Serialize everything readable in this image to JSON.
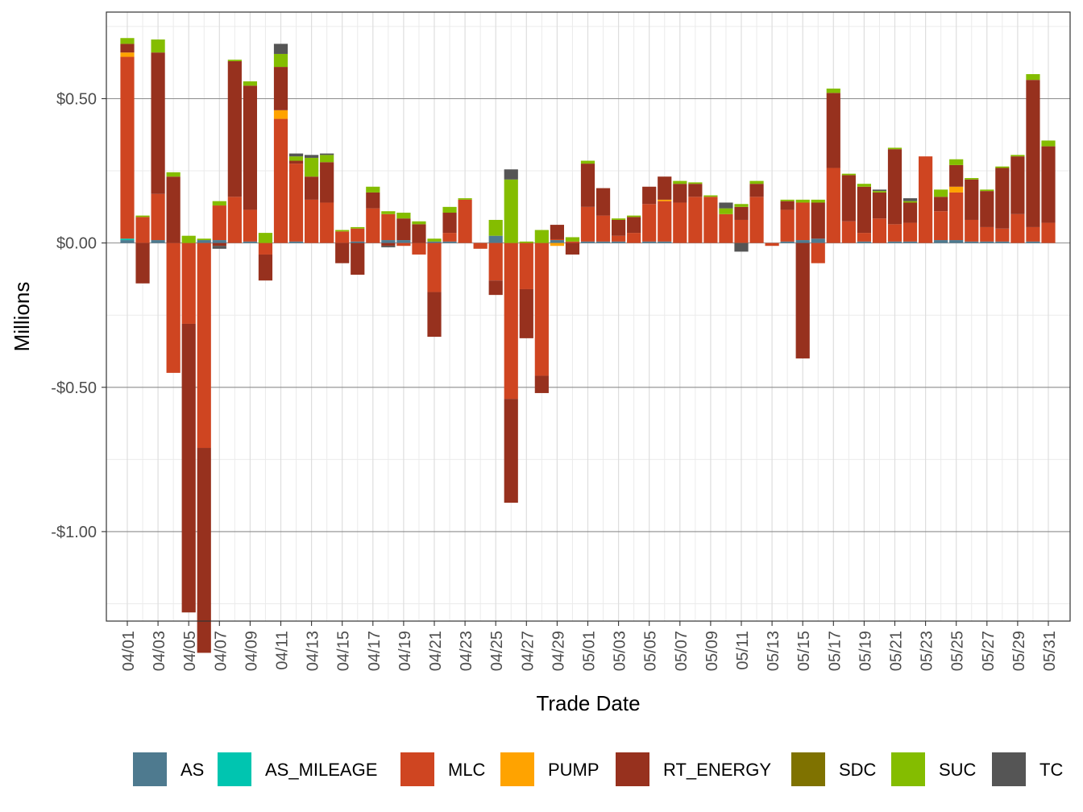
{
  "chart_data": {
    "type": "bar",
    "stacked": true,
    "xlabel": "Trade Date",
    "ylabel": "Millions",
    "ylim": [
      -1.31,
      0.8
    ],
    "yticks": [
      0.5,
      0.0,
      -0.5,
      -1.0
    ],
    "ytick_labels": [
      "$0.50",
      "$0.00",
      "-$0.50",
      "-$1.00"
    ],
    "grid": true,
    "legend_position": "bottom",
    "categories": [
      "04/01",
      "04/02",
      "04/03",
      "04/04",
      "04/05",
      "04/06",
      "04/07",
      "04/08",
      "04/09",
      "04/10",
      "04/11",
      "04/12",
      "04/13",
      "04/14",
      "04/15",
      "04/16",
      "04/17",
      "04/18",
      "04/19",
      "04/20",
      "04/21",
      "04/22",
      "04/23",
      "04/24",
      "04/25",
      "04/26",
      "04/27",
      "04/28",
      "04/29",
      "04/30",
      "05/01",
      "05/02",
      "05/03",
      "05/04",
      "05/05",
      "05/06",
      "05/07",
      "05/08",
      "05/09",
      "05/10",
      "05/11",
      "05/12",
      "05/13",
      "05/14",
      "05/15",
      "05/16",
      "05/17",
      "05/18",
      "05/19",
      "05/20",
      "05/21",
      "05/22",
      "05/23",
      "05/24",
      "05/25",
      "05/26",
      "05/27",
      "05/28",
      "05/29",
      "05/30",
      "05/31"
    ],
    "xtick_labels": [
      "04/01",
      "04/03",
      "04/05",
      "04/07",
      "04/09",
      "04/11",
      "04/13",
      "04/15",
      "04/17",
      "04/19",
      "04/21",
      "04/23",
      "04/25",
      "04/27",
      "04/29",
      "05/01",
      "05/03",
      "05/05",
      "05/07",
      "05/09",
      "05/11",
      "05/13",
      "05/15",
      "05/17",
      "05/19",
      "05/21",
      "05/23",
      "05/25",
      "05/27",
      "05/29",
      "05/31"
    ],
    "series": [
      {
        "name": "AS",
        "color": "#4e7a8f",
        "values": [
          0.01,
          0,
          0.01,
          0,
          0,
          0.01,
          0.01,
          0,
          0.005,
          0,
          0,
          0.005,
          0,
          0,
          0,
          0.005,
          0,
          0.01,
          0.01,
          0,
          0.005,
          0.005,
          0,
          0,
          0.025,
          0,
          0,
          0,
          0.01,
          0,
          0.005,
          0.005,
          0.005,
          0,
          0.005,
          0.005,
          0,
          0,
          0,
          0,
          0,
          0,
          0,
          0.005,
          0.01,
          0.015,
          0,
          0,
          0.005,
          0,
          0.005,
          0.005,
          0,
          0.01,
          0.01,
          0.005,
          0.005,
          0.005,
          0,
          0.005,
          0
        ]
      },
      {
        "name": "AS_MILEAGE",
        "color": "#00c5b0",
        "values": [
          0.005,
          0,
          0,
          0,
          0,
          0,
          0,
          0,
          0,
          0,
          0,
          0,
          0,
          0,
          0,
          0,
          0,
          0,
          0,
          0,
          0,
          0,
          0,
          0,
          0,
          0,
          0,
          0,
          0,
          0,
          0,
          0,
          0,
          0,
          0,
          0,
          0,
          0,
          0,
          0,
          0,
          0,
          0,
          0,
          0,
          0,
          0,
          0,
          0,
          0,
          0,
          0,
          0,
          0,
          0,
          0,
          0,
          0,
          0,
          0,
          0
        ]
      },
      {
        "name": "MLC",
        "color": "#cf4521",
        "values": [
          0.63,
          0.09,
          0.16,
          -0.45,
          -0.28,
          -0.71,
          0.12,
          0.16,
          0.11,
          -0.04,
          0.43,
          0.27,
          0.15,
          0.14,
          0.04,
          0.045,
          0.12,
          0.09,
          -0.01,
          -0.04,
          -0.17,
          0.03,
          0.15,
          -0.02,
          -0.13,
          -0.54,
          -0.16,
          -0.46,
          0.003,
          0.005,
          0.12,
          0.09,
          0.02,
          0.035,
          0.13,
          0.14,
          0.14,
          0.16,
          0.16,
          0.1,
          0.08,
          0.16,
          -0.01,
          0.11,
          0.13,
          -0.07,
          0.26,
          0.075,
          0.03,
          0.085,
          0.06,
          0.065,
          0.3,
          0.1,
          0.165,
          0.075,
          0.05,
          0.045,
          0.1,
          0.05,
          0.07
        ]
      },
      {
        "name": "PUMP",
        "color": "#ffa300",
        "values": [
          0.015,
          0,
          0,
          0,
          0,
          0,
          0,
          0,
          0,
          0,
          0.03,
          0,
          0,
          0,
          0,
          0,
          0,
          0,
          0,
          0,
          0,
          0,
          0,
          0,
          0,
          0,
          0,
          0,
          -0.01,
          0,
          0,
          0,
          0,
          0,
          0,
          0.005,
          0,
          0,
          0,
          0,
          0,
          0,
          0,
          0,
          0,
          0,
          0,
          0,
          0,
          0,
          0,
          0,
          0,
          0,
          0.02,
          0,
          0,
          0,
          0,
          0,
          0
        ]
      },
      {
        "name": "RT_ENERGY",
        "color": "#97311e",
        "values": [
          0.03,
          -0.14,
          0.49,
          0.23,
          -1.0,
          -0.71,
          -0.01,
          0.47,
          0.43,
          -0.09,
          0.15,
          0.01,
          0.08,
          0.14,
          -0.07,
          -0.11,
          0.055,
          -0.01,
          0.075,
          0.065,
          -0.155,
          0.07,
          0.0,
          0.0,
          -0.05,
          -0.36,
          -0.17,
          -0.06,
          0.05,
          -0.04,
          0.15,
          0.095,
          0.055,
          0.055,
          0.06,
          0.08,
          0.065,
          0.045,
          0.0,
          0.0,
          0.045,
          0.045,
          0.0,
          0.03,
          -0.4,
          0.125,
          0.26,
          0.16,
          0.16,
          0.09,
          0.26,
          0.07,
          0.0,
          0.05,
          0.075,
          0.14,
          0.125,
          0.21,
          0.2,
          0.51,
          0.265
        ]
      },
      {
        "name": "SDC",
        "color": "#7f7200",
        "values": [
          0,
          0,
          0,
          0,
          0,
          0,
          0,
          0,
          0,
          0,
          0,
          0,
          0,
          0,
          0,
          0,
          0,
          0,
          0,
          0,
          0,
          0,
          0,
          0,
          0,
          0,
          0,
          0,
          0,
          0,
          0,
          0,
          0,
          0,
          0,
          0,
          0,
          0,
          0,
          0,
          0,
          0,
          0,
          0,
          0,
          0,
          0,
          0,
          0,
          0,
          0,
          0,
          0,
          0,
          0,
          0,
          0,
          0,
          0,
          0,
          0
        ]
      },
      {
        "name": "SUC",
        "color": "#84bd00",
        "values": [
          0.02,
          0.005,
          0.045,
          0.015,
          0.025,
          0.005,
          0.015,
          0.005,
          0.015,
          0.035,
          0.045,
          0.015,
          0.065,
          0.025,
          0.005,
          0.005,
          0.02,
          0.01,
          0.02,
          0.01,
          0.01,
          0.02,
          0.005,
          0.0,
          0.055,
          0.22,
          0.005,
          0.045,
          0.0,
          0.015,
          0.01,
          0.0,
          0.005,
          0.005,
          0.0,
          0.0,
          0.01,
          0.005,
          0.005,
          0.02,
          0.01,
          0.01,
          0.0,
          0.005,
          0.01,
          0.01,
          0.015,
          0.005,
          0.01,
          0.005,
          0.005,
          0.005,
          0.0,
          0.025,
          0.02,
          0.005,
          0.005,
          0.005,
          0.005,
          0.02,
          0.02
        ]
      },
      {
        "name": "TC",
        "color": "#555555",
        "values": [
          0,
          0,
          0,
          0,
          0,
          0,
          -0.01,
          0,
          0,
          0,
          0.035,
          0.01,
          0.01,
          0.005,
          0,
          0,
          0,
          -0.005,
          0,
          0,
          0,
          0,
          0,
          0,
          0,
          0.035,
          0,
          0,
          0,
          0,
          0,
          0,
          0,
          0,
          0,
          0,
          0,
          0,
          0,
          0.02,
          -0.03,
          0,
          0,
          0,
          0,
          0,
          0,
          0,
          0,
          0.005,
          0,
          0.01,
          0,
          0,
          0,
          0,
          0,
          0,
          0,
          0,
          0
        ]
      }
    ]
  }
}
